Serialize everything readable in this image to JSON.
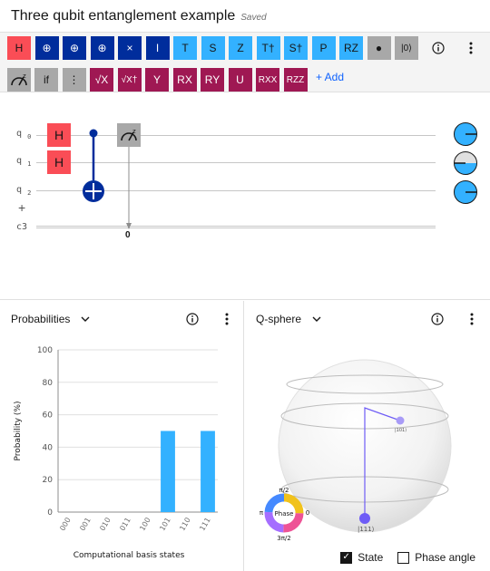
{
  "title": "Three qubit entanglement example",
  "saved": "Saved",
  "palette": {
    "row1": [
      {
        "label": "H",
        "kind": "red",
        "name": "gate-h"
      },
      {
        "label": "⊕",
        "kind": "dblue",
        "name": "gate-not"
      },
      {
        "label": "⊕",
        "kind": "dblue",
        "name": "gate-cnot"
      },
      {
        "label": "⊕",
        "kind": "dblue",
        "name": "gate-toffoli"
      },
      {
        "label": "×",
        "kind": "dblue",
        "name": "gate-swap"
      },
      {
        "label": "I",
        "kind": "dblue",
        "name": "gate-i"
      },
      {
        "label": "T",
        "kind": "cyan",
        "name": "gate-t"
      },
      {
        "label": "S",
        "kind": "cyan",
        "name": "gate-s"
      },
      {
        "label": "Z",
        "kind": "cyan",
        "name": "gate-z"
      },
      {
        "label": "T†",
        "kind": "cyan",
        "name": "gate-tdg"
      },
      {
        "label": "S†",
        "kind": "cyan",
        "name": "gate-sdg"
      },
      {
        "label": "P",
        "kind": "cyan",
        "name": "gate-p"
      },
      {
        "label": "RZ",
        "kind": "cyan",
        "name": "gate-rz"
      },
      {
        "label": "●",
        "kind": "grey",
        "name": "gate-barrier-dot"
      },
      {
        "label": "|0⟩",
        "kind": "grey",
        "name": "gate-reset"
      }
    ],
    "row2": [
      {
        "label": "if",
        "kind": "grey",
        "name": "gate-if"
      },
      {
        "label": "⋮",
        "kind": "grey",
        "name": "gate-barrier"
      },
      {
        "label": "√X",
        "kind": "mag",
        "name": "gate-sx"
      },
      {
        "label": "√X†",
        "kind": "mag",
        "name": "gate-sxdg"
      },
      {
        "label": "Y",
        "kind": "mag",
        "name": "gate-y"
      },
      {
        "label": "RX",
        "kind": "mag",
        "name": "gate-rx"
      },
      {
        "label": "RY",
        "kind": "mag",
        "name": "gate-ry"
      },
      {
        "label": "U",
        "kind": "mag",
        "name": "gate-u"
      },
      {
        "label": "RXX",
        "kind": "mag",
        "name": "gate-rxx"
      },
      {
        "label": "RZZ",
        "kind": "mag",
        "name": "gate-rzz"
      }
    ],
    "add_label": "+ Add",
    "info_icon": "info-icon",
    "more_icon": "overflow-menu-icon"
  },
  "circuit": {
    "qubits": [
      {
        "label": "q",
        "index": "0"
      },
      {
        "label": "q",
        "index": "1"
      },
      {
        "label": "q",
        "index": "2"
      }
    ],
    "classical_label": "c3",
    "add_qubit": "+",
    "h_label": "H",
    "measure_bit": "0"
  },
  "probabilities": {
    "title": "Probabilities",
    "chart_data": {
      "type": "bar",
      "categories": [
        "000",
        "001",
        "010",
        "011",
        "100",
        "101",
        "110",
        "111"
      ],
      "values": [
        0,
        0,
        0,
        0,
        0,
        50,
        0,
        50
      ],
      "xlabel": "Computational basis states",
      "ylabel": "Probability (%)",
      "ylim": [
        0,
        100
      ],
      "yticks": [
        0,
        20,
        40,
        60,
        80,
        100
      ],
      "bar_color": "#33b1ff",
      "grid": true
    }
  },
  "qsphere": {
    "title": "Q-sphere",
    "state_label_top": "|101⟩",
    "state_label_bottom": "|111⟩",
    "phase_label": "Phase",
    "phase_top": "π/2",
    "phase_left": "π",
    "phase_right": "0",
    "phase_bottom": "3π/2",
    "state_checkbox": "State",
    "phase_checkbox": "Phase angle",
    "state_checked": true,
    "phase_checked": false,
    "point_color": "#6e5cf6"
  }
}
